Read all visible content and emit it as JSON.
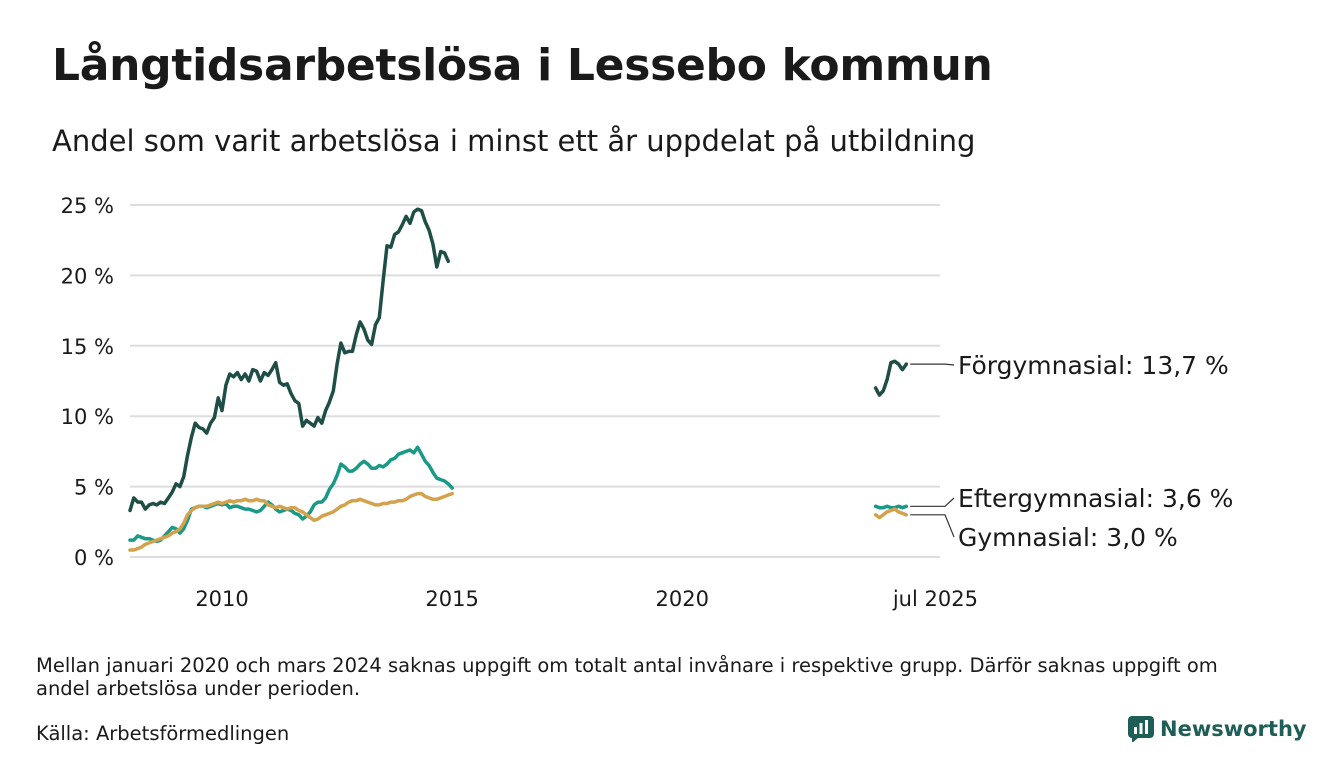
{
  "title": "Långtidsarbetslösa i Lessebo kommun",
  "subtitle": "Andel som varit arbetslösa i minst ett år uppdelat på utbildning",
  "note": "Mellan januari 2020 och mars 2024 saknas uppgift om totalt antal invånare i respektive grupp. Därför saknas uppgift om andel arbetslösa under perioden.",
  "source": "Källa: Arbetsförmedlingen",
  "brand": "Newsworthy",
  "colors": {
    "forgymnasial": "#1f4e46",
    "eftergymnasial": "#1a9a86",
    "gymnasial": "#d4a24c",
    "grid": "#dddddd",
    "brand": "#1f5e57"
  },
  "chart_data": {
    "type": "line",
    "y_ticks": [
      "0 %",
      "5 %",
      "10 %",
      "15 %",
      "20 %",
      "25 %"
    ],
    "x_ticks": [
      "2010",
      "2015",
      "2020",
      "jul 2025"
    ],
    "x_tick_values": [
      2010.0,
      2015.0,
      2020.0,
      2025.5
    ],
    "xlim": [
      2008.0,
      2025.6
    ],
    "ylim": [
      0,
      25
    ],
    "grid": "horizontal",
    "series": [
      {
        "name": "Förgymnasial",
        "end_label": "Förgymnasial: 13,7 %",
        "segments": [
          {
            "start": 2008.0,
            "values": [
              3.3,
              4.2,
              3.9,
              3.9,
              3.4,
              3.7,
              3.8,
              3.7,
              3.9,
              3.8,
              4.2,
              4.6,
              5.2,
              5.0,
              5.7,
              7.2,
              8.5,
              9.5,
              9.2,
              9.1,
              8.8,
              9.5,
              9.9,
              11.3,
              10.4,
              12.2,
              13.0,
              12.8,
              13.1,
              12.6,
              13.0,
              12.5,
              13.3,
              13.2,
              12.5,
              13.1,
              12.9,
              13.3,
              13.8,
              12.4,
              12.2,
              12.3,
              11.6,
              11.1,
              10.9,
              9.3,
              9.7,
              9.5,
              9.3,
              9.9,
              9.5,
              10.4,
              11.0,
              11.8,
              13.7,
              15.2,
              14.5,
              14.6,
              14.6,
              15.8,
              16.7,
              16.2,
              15.4,
              15.1,
              16.5,
              17.0,
              19.6,
              22.1,
              22.0,
              22.9,
              23.1,
              23.6,
              24.2,
              23.7,
              24.5,
              24.7,
              24.6,
              23.8,
              23.2,
              22.2,
              20.6,
              21.7,
              21.6,
              21.0
            ]
          },
          {
            "start": 2024.2,
            "values": [
              12.0,
              11.5,
              11.8,
              12.6,
              13.8,
              13.9,
              13.7,
              13.3,
              13.7
            ]
          }
        ]
      },
      {
        "name": "Eftergymnasial",
        "end_label": "Eftergymnasial:  3,6 %",
        "segments": [
          {
            "start": 2008.0,
            "values": [
              1.2,
              1.2,
              1.5,
              1.4,
              1.3,
              1.3,
              1.2,
              1.1,
              1.2,
              1.5,
              1.8,
              2.1,
              2.0,
              1.7,
              2.0,
              2.6,
              3.4,
              3.5,
              3.6,
              3.6,
              3.5,
              3.6,
              3.7,
              3.8,
              3.7,
              3.8,
              3.5,
              3.6,
              3.6,
              3.5,
              3.4,
              3.4,
              3.3,
              3.2,
              3.3,
              3.6,
              3.9,
              3.7,
              3.4,
              3.2,
              3.3,
              3.4,
              3.3,
              3.1,
              3.0,
              2.7,
              2.9,
              3.2,
              3.7,
              3.9,
              3.9,
              4.2,
              4.8,
              5.2,
              5.8,
              6.6,
              6.4,
              6.1,
              6.1,
              6.3,
              6.6,
              6.8,
              6.6,
              6.3,
              6.3,
              6.5,
              6.4,
              6.6,
              6.9,
              7.0,
              7.3,
              7.4,
              7.5,
              7.6,
              7.4,
              7.8,
              7.3,
              6.8,
              6.5,
              6.0,
              5.6,
              5.5,
              5.4,
              5.2,
              4.9
            ]
          },
          {
            "start": 2024.2,
            "values": [
              3.6,
              3.5,
              3.5,
              3.6,
              3.5,
              3.5,
              3.6,
              3.5,
              3.6
            ]
          }
        ]
      },
      {
        "name": "Gymnasial",
        "end_label": "Gymnasial:  3,0 %",
        "segments": [
          {
            "start": 2008.0,
            "values": [
              0.5,
              0.5,
              0.6,
              0.7,
              0.9,
              1.0,
              1.1,
              1.2,
              1.3,
              1.4,
              1.5,
              1.7,
              1.8,
              2.0,
              2.4,
              3.0,
              3.3,
              3.5,
              3.6,
              3.6,
              3.6,
              3.7,
              3.8,
              3.9,
              3.8,
              3.9,
              4.0,
              3.9,
              4.0,
              4.0,
              4.1,
              4.0,
              4.0,
              4.1,
              4.0,
              4.0,
              3.7,
              3.6,
              3.5,
              3.6,
              3.5,
              3.4,
              3.5,
              3.5,
              3.3,
              3.2,
              3.0,
              2.8,
              2.6,
              2.7,
              2.9,
              3.0,
              3.1,
              3.2,
              3.4,
              3.6,
              3.7,
              3.9,
              4.0,
              4.0,
              4.1,
              4.0,
              3.9,
              3.8,
              3.7,
              3.7,
              3.8,
              3.8,
              3.9,
              3.9,
              4.0,
              4.0,
              4.1,
              4.3,
              4.4,
              4.5,
              4.5,
              4.3,
              4.2,
              4.1,
              4.1,
              4.2,
              4.3,
              4.4,
              4.5
            ]
          },
          {
            "start": 2024.2,
            "values": [
              3.0,
              2.8,
              3.0,
              3.2,
              3.3,
              3.4,
              3.2,
              3.1,
              3.0
            ]
          }
        ]
      }
    ]
  }
}
